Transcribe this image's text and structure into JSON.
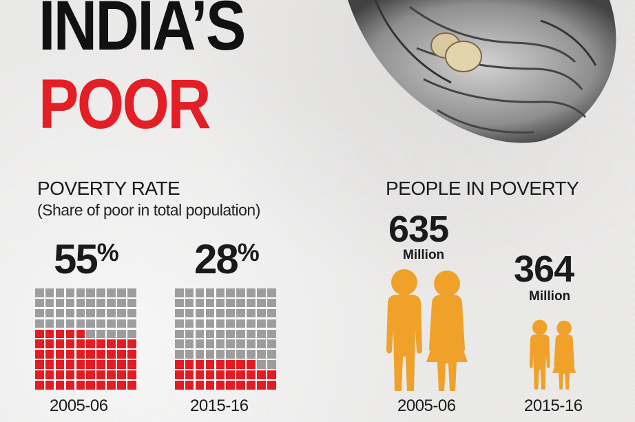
{
  "title": {
    "line1": "INDIA’S",
    "line2": "POOR"
  },
  "poverty_rate": {
    "heading": "POVERTY RATE",
    "subtitle": "(Share of poor in total population)",
    "periods": [
      {
        "year": "2005-06",
        "value_label": "55",
        "unit": "%"
      },
      {
        "year": "2015-16",
        "value_label": "28",
        "unit": "%"
      }
    ]
  },
  "people_in_poverty": {
    "heading": "PEOPLE IN POVERTY",
    "periods": [
      {
        "year": "2005-06",
        "value_label": "635",
        "unit": "Million"
      },
      {
        "year": "2015-16",
        "value_label": "364",
        "unit": "Million"
      }
    ]
  },
  "colors": {
    "poor_cell": "#e31b23",
    "nonpoor_cell": "#9d9d9d",
    "title_red": "#e41e26",
    "figure_orange": "#f0a12a"
  },
  "chart_data": [
    {
      "type": "waffle",
      "title": "POVERTY RATE",
      "subtitle": "(Share of poor in total population)",
      "categories": [
        "2005-06",
        "2015-16"
      ],
      "values": [
        55,
        28
      ],
      "unit": "%",
      "grid": [
        10,
        10
      ],
      "ylim": [
        0,
        100
      ]
    },
    {
      "type": "pictograph",
      "title": "PEOPLE IN POVERTY",
      "categories": [
        "2005-06",
        "2015-16"
      ],
      "values": [
        635,
        364
      ],
      "unit": "Million"
    }
  ]
}
